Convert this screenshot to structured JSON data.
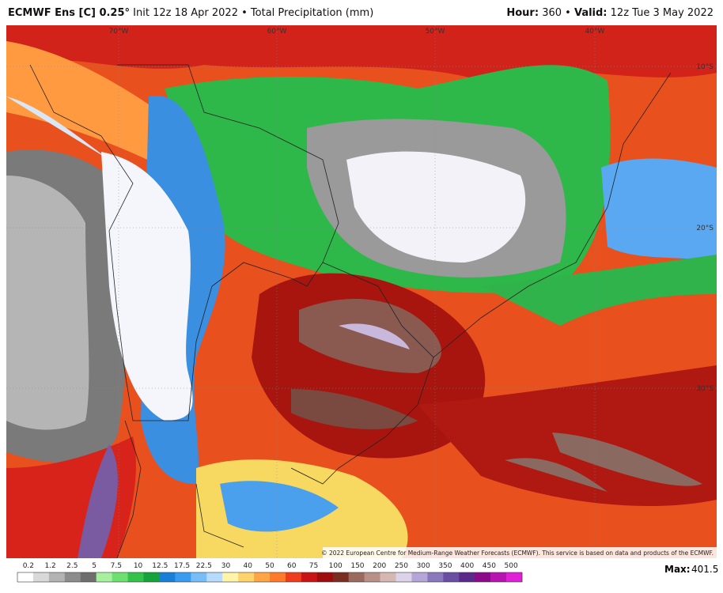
{
  "header": {
    "model": "ECMWF Ens [C] 0.25°",
    "init": "Init 12z 18 Apr 2022",
    "separator": "•",
    "field": "Total Precipitation (mm)",
    "hour_label": "Hour:",
    "hour": "360",
    "valid_label": "Valid:",
    "valid": "12z Tue 3 May 2022"
  },
  "map": {
    "longitudes": [
      "70°W",
      "60°W",
      "50°W",
      "40°W"
    ],
    "latitudes": [
      "10°S",
      "20°S",
      "30°S"
    ],
    "credit": "© 2022 European Centre for Medium-Range Weather Forecasts (ECMWF). This service is based on data and products of the ECMWF."
  },
  "colorbar": {
    "ticks": [
      0.2,
      1.2,
      2.5,
      5,
      7.5,
      10,
      12.5,
      17.5,
      22.5,
      30,
      40,
      50,
      60,
      75,
      100,
      150,
      200,
      250,
      300,
      350,
      400,
      450,
      500
    ],
    "colors": [
      "#ffffff",
      "#d9d9d9",
      "#b3b3b3",
      "#8c8c8c",
      "#6e6e6e",
      "#a6f0a0",
      "#6ee070",
      "#33c24a",
      "#16a33a",
      "#1a7fd6",
      "#3a9cf0",
      "#77bdf7",
      "#b7dcfb",
      "#fff4a8",
      "#ffd36b",
      "#ffa545",
      "#ff7a2a",
      "#ee3c1c",
      "#c81414",
      "#9e0d0d",
      "#7a2e22",
      "#9a6a5e",
      "#b89088",
      "#d6b8b2",
      "#dcd2ea",
      "#b4a6d6",
      "#8a78bc",
      "#6a4ea4",
      "#5a2a8a",
      "#8a0a8a",
      "#b814b0",
      "#e020d6"
    ]
  },
  "max": {
    "label": "Max:",
    "value": "401.5"
  }
}
